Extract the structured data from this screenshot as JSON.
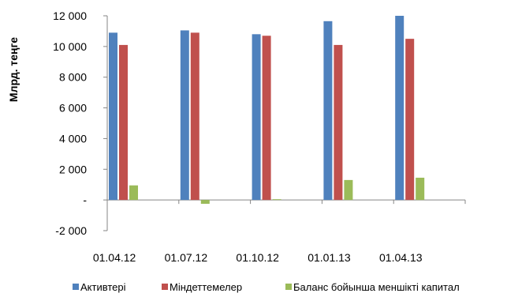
{
  "chart_data": {
    "type": "bar",
    "ylabel": "Млрд. теңге",
    "categories": [
      "01.04.12",
      "01.07.12",
      "01.10.12",
      "01.01.13",
      "01.04.13"
    ],
    "series": [
      {
        "name": "Активтері",
        "color": "#4F81BD",
        "values": [
          10900,
          11050,
          10800,
          11650,
          12000
        ]
      },
      {
        "name": "Міндеттемелер",
        "color": "#C0504D",
        "values": [
          10100,
          10900,
          10700,
          10100,
          10500
        ]
      },
      {
        "name": "Баланс бойынша меншікті капитал",
        "color": "#9BBB59",
        "values": [
          950,
          -250,
          50,
          1300,
          1450
        ]
      }
    ],
    "ylim": [
      -2000,
      12000
    ],
    "yticks": [
      -2000,
      0,
      2000,
      4000,
      6000,
      8000,
      10000,
      12000
    ],
    "ytick_labels": [
      "-2 000",
      "-",
      "2 000",
      "4 000",
      "6 000",
      "8 000",
      "10 000",
      "12 000"
    ],
    "grid": false,
    "legend_position": "bottom"
  }
}
